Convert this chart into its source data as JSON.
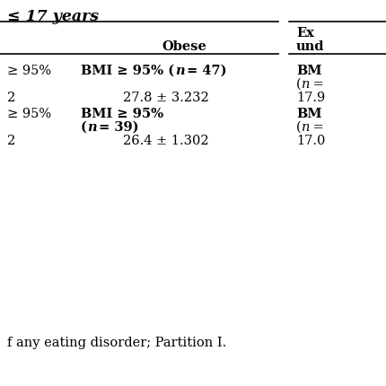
{
  "title": "≤ 17 years",
  "col1_header": "Obese",
  "col2_header_line1": "E ",
  "col2_header_line2": "und",
  "line1_col0": "≥ 95%",
  "line1_col1a": "BMI ≥ 95% (",
  "line1_col1b": "n",
  "line1_col1c": " = 47)",
  "line1_col2": "BM",
  "line1_col2b": "(n =",
  "line2_col0": "2",
  "line2_col1": "27.8 ± 3.232",
  "line2_col2": "17.9",
  "line3_col0": "≥ 95%",
  "line3_col1a": "BMI ≥ 95%",
  "line3_col1b": "(n = 39)",
  "line3_col2a": "BM",
  "line3_col2b": "(n =",
  "line4_col0": "2",
  "line4_col1": "26.4 ± 1.302",
  "line4_col2": "17.0",
  "footnote": "f any eating disorder; Partition I.",
  "bg_color": "#ffffff",
  "text_color": "#000000",
  "font_size": 10.5
}
